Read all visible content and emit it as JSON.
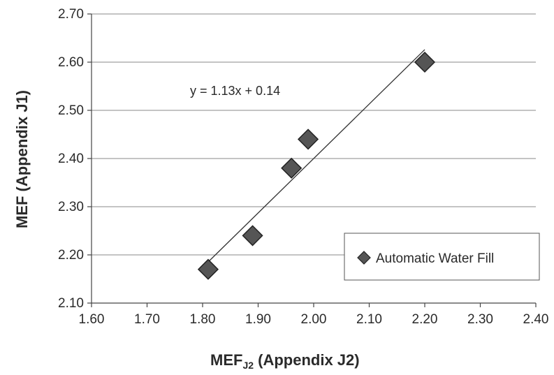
{
  "chart_data": {
    "type": "scatter",
    "xlabel_main": "MEF",
    "xlabel_sub": "J2",
    "xlabel_rest": " (Appendix J2)",
    "ylabel": "MEF  (Appendix J1)",
    "xlim": [
      1.6,
      2.4
    ],
    "ylim": [
      2.1,
      2.7
    ],
    "xticks": [
      "1.60",
      "1.70",
      "1.80",
      "1.90",
      "2.00",
      "2.10",
      "2.20",
      "2.30",
      "2.40"
    ],
    "yticks": [
      "2.10",
      "2.20",
      "2.30",
      "2.40",
      "2.50",
      "2.60",
      "2.70"
    ],
    "grid": "horizontal",
    "series": [
      {
        "name": "Automatic Water Fill",
        "color": "#555555",
        "marker": "diamond",
        "points": [
          {
            "x": 1.81,
            "y": 2.17
          },
          {
            "x": 1.89,
            "y": 2.24
          },
          {
            "x": 1.96,
            "y": 2.38
          },
          {
            "x": 1.99,
            "y": 2.44
          },
          {
            "x": 2.2,
            "y": 2.6
          }
        ]
      }
    ],
    "trendline": {
      "slope": 1.13,
      "intercept": 0.14,
      "x_range": [
        1.81,
        2.2
      ],
      "equation": "y = 1.13x + 0.14"
    },
    "legend": {
      "position": "bottom-right",
      "label": "Automatic Water Fill"
    }
  }
}
